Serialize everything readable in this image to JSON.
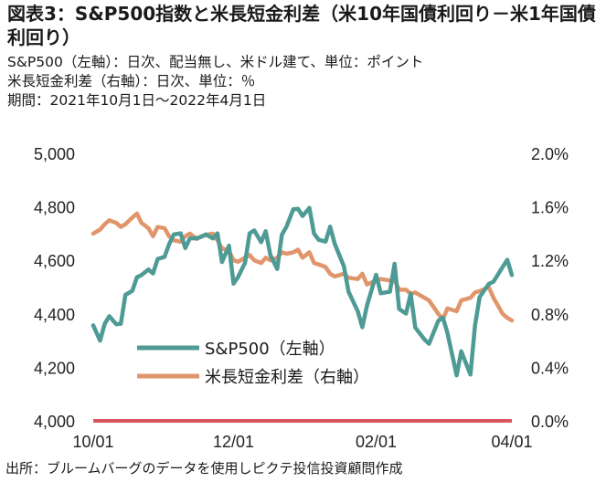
{
  "header": {
    "title": "図表3：S&P500指数と米長短金利差（米10年国債利回り－米1年国債利回り）",
    "sub1": "S&P500（左軸）：日次、配当無し、米ドル建て、単位：ポイント",
    "sub2": "米長短金利差（右軸）：日次、単位：％",
    "sub3": "期間：2021年10月1日～2022年4月1日"
  },
  "source": "出所：ブルームバーグのデータを使用しピクテ投信投資顧問作成",
  "colors": {
    "sp500": "#4e9a94",
    "spread": "#e0956b",
    "zero": "#d9545f"
  },
  "chart_data": {
    "type": "line",
    "x_ticks": [
      "10/01",
      "12/01",
      "02/01",
      "04/01"
    ],
    "y_left": {
      "min": 4000,
      "max": 5000,
      "ticks": [
        "4,000",
        "4,200",
        "4,400",
        "4,600",
        "4,800",
        "5,000"
      ]
    },
    "y_right": {
      "min": 0.0,
      "max": 2.0,
      "ticks": [
        "0.0%",
        "0.4%",
        "0.8%",
        "1.2%",
        "1.6%",
        "2.0%"
      ]
    },
    "grid": false,
    "legend_position": "bottom-left",
    "x": [
      "2021-10-01",
      "2021-10-04",
      "2021-10-06",
      "2021-10-08",
      "2021-10-11",
      "2021-10-13",
      "2021-10-15",
      "2021-10-18",
      "2021-10-20",
      "2021-10-22",
      "2021-10-25",
      "2021-10-27",
      "2021-10-29",
      "2021-11-01",
      "2021-11-03",
      "2021-11-05",
      "2021-11-08",
      "2021-11-10",
      "2021-11-12",
      "2021-11-15",
      "2021-11-17",
      "2021-11-19",
      "2021-11-22",
      "2021-11-24",
      "2021-11-26",
      "2021-11-29",
      "2021-12-01",
      "2021-12-03",
      "2021-12-06",
      "2021-12-08",
      "2021-12-10",
      "2021-12-13",
      "2021-12-15",
      "2021-12-17",
      "2021-12-20",
      "2021-12-22",
      "2021-12-24",
      "2021-12-27",
      "2021-12-29",
      "2021-12-31",
      "2022-01-03",
      "2022-01-05",
      "2022-01-07",
      "2022-01-10",
      "2022-01-12",
      "2022-01-14",
      "2022-01-18",
      "2022-01-20",
      "2022-01-24",
      "2022-01-26",
      "2022-01-28",
      "2022-02-01",
      "2022-02-03",
      "2022-02-07",
      "2022-02-09",
      "2022-02-11",
      "2022-02-14",
      "2022-02-16",
      "2022-02-18",
      "2022-02-22",
      "2022-02-24",
      "2022-02-28",
      "2022-03-02",
      "2022-03-04",
      "2022-03-08",
      "2022-03-10",
      "2022-03-14",
      "2022-03-16",
      "2022-03-18",
      "2022-03-22",
      "2022-03-24",
      "2022-03-28",
      "2022-03-30",
      "2022-04-01"
    ],
    "series": [
      {
        "name": "S&P500（左軸）",
        "axis": "left",
        "values": [
          4357,
          4300,
          4363,
          4391,
          4361,
          4363,
          4471,
          4486,
          4537,
          4545,
          4566,
          4551,
          4605,
          4613,
          4660,
          4697,
          4701,
          4646,
          4682,
          4683,
          4688,
          4697,
          4682,
          4701,
          4594,
          4655,
          4513,
          4538,
          4591,
          4701,
          4712,
          4668,
          4709,
          4620,
          4568,
          4696,
          4726,
          4791,
          4793,
          4766,
          4796,
          4700,
          4677,
          4670,
          4726,
          4662,
          4577,
          4483,
          4410,
          4350,
          4431,
          4546,
          4477,
          4483,
          4587,
          4418,
          4401,
          4475,
          4349,
          4304,
          4288,
          4374,
          4386,
          4329,
          4170,
          4260,
          4173,
          4357,
          4463,
          4512,
          4520,
          4575,
          4602,
          4545
        ]
      },
      {
        "name": "米長短金利差（右軸）",
        "axis": "right",
        "values": [
          1.4,
          1.43,
          1.47,
          1.5,
          1.48,
          1.45,
          1.47,
          1.52,
          1.55,
          1.48,
          1.44,
          1.38,
          1.45,
          1.44,
          1.38,
          1.35,
          1.34,
          1.38,
          1.4,
          1.36,
          1.38,
          1.39,
          1.4,
          1.35,
          1.29,
          1.27,
          1.2,
          1.19,
          1.22,
          1.24,
          1.2,
          1.18,
          1.22,
          1.2,
          1.22,
          1.26,
          1.25,
          1.26,
          1.28,
          1.22,
          1.26,
          1.18,
          1.17,
          1.15,
          1.1,
          1.08,
          1.1,
          1.07,
          1.06,
          1.1,
          1.02,
          1.05,
          1.06,
          1.05,
          1.05,
          0.98,
          0.98,
          0.95,
          0.96,
          0.92,
          0.9,
          0.8,
          0.76,
          0.84,
          0.82,
          0.9,
          0.92,
          0.96,
          0.97,
          1.0,
          0.92,
          0.8,
          0.77,
          0.75
        ]
      }
    ]
  }
}
